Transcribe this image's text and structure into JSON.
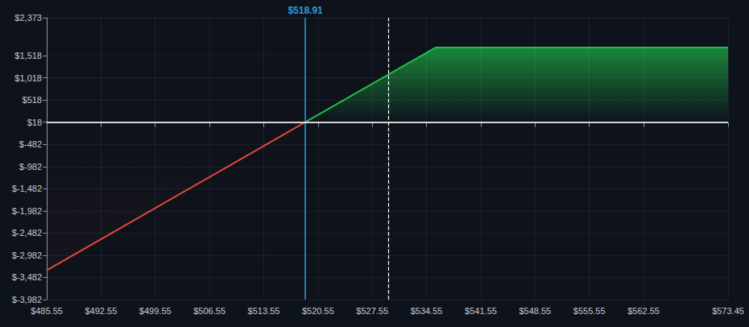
{
  "chart_data": {
    "type": "line",
    "series": [
      {
        "color": "#e0483a",
        "x": [
          485.55,
          518.91
        ],
        "values": [
          -3320,
          18
        ]
      },
      {
        "color": "#1fbf4a",
        "x": [
          518.91,
          535.7,
          573.45
        ],
        "values": [
          18,
          1700,
          1700
        ]
      }
    ],
    "xlim": [
      485.55,
      573.45
    ],
    "xticks": [
      {
        "value": 485.55,
        "label": "$485.55"
      },
      {
        "value": 492.55,
        "label": "$492.55"
      },
      {
        "value": 499.55,
        "label": "$499.55"
      },
      {
        "value": 506.55,
        "label": "$506.55"
      },
      {
        "value": 513.55,
        "label": "$513.55"
      },
      {
        "value": 520.55,
        "label": "$520.55"
      },
      {
        "value": 527.55,
        "label": "$527.55"
      },
      {
        "value": 534.55,
        "label": "$534.55"
      },
      {
        "value": 541.55,
        "label": "$541.55"
      },
      {
        "value": 548.55,
        "label": "$548.55"
      },
      {
        "value": 555.55,
        "label": "$555.55"
      },
      {
        "value": 562.55,
        "label": "$562.55"
      },
      {
        "value": 573.45,
        "label": "$573.45"
      }
    ],
    "ylim": [
      -3982,
      2373
    ],
    "yticks": [
      {
        "value": -3982,
        "label": "$-3,982"
      },
      {
        "value": -3482,
        "label": "$-3,482"
      },
      {
        "value": -2982,
        "label": "$-2,982"
      },
      {
        "value": -2482,
        "label": "$-2,482"
      },
      {
        "value": -1982,
        "label": "$-1,982"
      },
      {
        "value": -1482,
        "label": "$-1,482"
      },
      {
        "value": -982,
        "label": "$-982"
      },
      {
        "value": -482,
        "label": "$-482"
      },
      {
        "value": 18,
        "label": "$18"
      },
      {
        "value": 518,
        "label": "$518"
      },
      {
        "value": 1018,
        "label": "$1,018"
      },
      {
        "value": 1518,
        "label": "$1,518"
      },
      {
        "value": 2373,
        "label": "$2,373"
      }
    ],
    "grid": true,
    "annotations": [
      {
        "x": 518.91,
        "label": "$518.91",
        "color": "#2f9be0",
        "line_style": "solid"
      },
      {
        "x": 529.6,
        "color": "#ffffff",
        "line_style": "dashed"
      },
      {
        "y": 18,
        "color": "#ffffff",
        "line_style": "solid"
      }
    ]
  }
}
